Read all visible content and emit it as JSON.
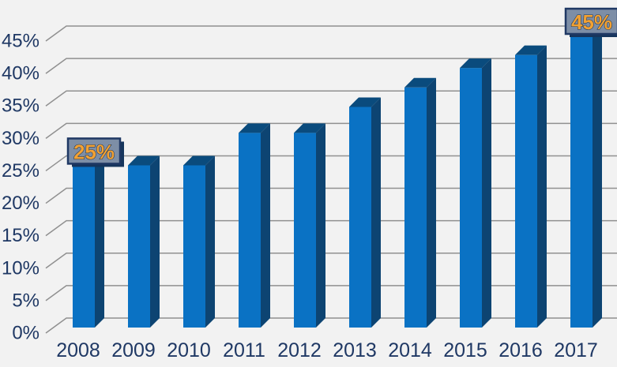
{
  "chart_data": {
    "type": "bar",
    "style": "3d-column",
    "title": "",
    "xlabel": "",
    "ylabel": "",
    "categories": [
      "2008",
      "2009",
      "2010",
      "2011",
      "2012",
      "2013",
      "2014",
      "2015",
      "2016",
      "2017"
    ],
    "values": [
      25,
      25,
      25,
      30,
      30,
      34,
      37,
      40,
      42,
      45
    ],
    "unit": "%",
    "ylim": [
      0,
      45
    ],
    "ytick_step": 5,
    "ytick_labels": [
      "0%",
      "5%",
      "10%",
      "15%",
      "20%",
      "25%",
      "30%",
      "35%",
      "40%",
      "45%"
    ],
    "grid": true,
    "legend": false,
    "annotations": [
      {
        "category": "2008",
        "label": "25%"
      },
      {
        "category": "2017",
        "label": "45%"
      }
    ],
    "colors": {
      "background": "#F2F2F2",
      "gridline": "#909090",
      "axis_text": "#1F3864",
      "bar_front": "#0A72C4",
      "bar_top": "#0A4B7D",
      "bar_side": "#0D4472",
      "callout_fill": "#7D8EA6",
      "callout_border": "#1F3864",
      "callout_text": "#F2A133",
      "callout_shadow": "#16355C"
    }
  }
}
